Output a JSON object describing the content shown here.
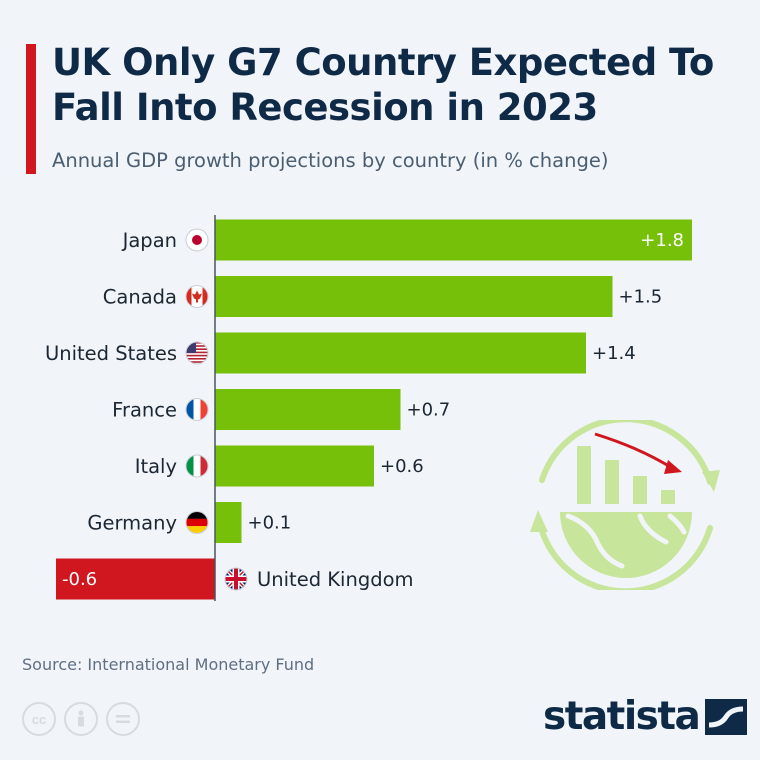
{
  "title": "UK Only G7 Country Expected To Fall Into Recession in 2023",
  "subtitle": "Annual GDP growth projections by country (in % change)",
  "source": "Source: International Monetary Fund",
  "brand": "statista",
  "license_icons": [
    "cc-icon",
    "person-icon",
    "equals-icon"
  ],
  "colors": {
    "accent": "#d0161e",
    "positive": "#76c00a",
    "negative": "#d0161e",
    "title": "#0e2a47",
    "background": "#f1f4f8"
  },
  "chart_data": {
    "type": "bar",
    "orientation": "horizontal",
    "categories": [
      "Japan",
      "Canada",
      "United States",
      "France",
      "Italy",
      "Germany",
      "United Kingdom"
    ],
    "values": [
      1.8,
      1.5,
      1.4,
      0.7,
      0.6,
      0.1,
      -0.6
    ],
    "value_labels": [
      "+1.8",
      "+1.5",
      "+1.4",
      "+0.7",
      "+0.6",
      "+0.1",
      "-0.6"
    ],
    "flags": [
      "japan-flag-icon",
      "canada-flag-icon",
      "us-flag-icon",
      "france-flag-icon",
      "italy-flag-icon",
      "germany-flag-icon",
      "uk-flag-icon"
    ],
    "xlim": [
      -0.6,
      1.8
    ],
    "grid": false,
    "legend": false
  }
}
